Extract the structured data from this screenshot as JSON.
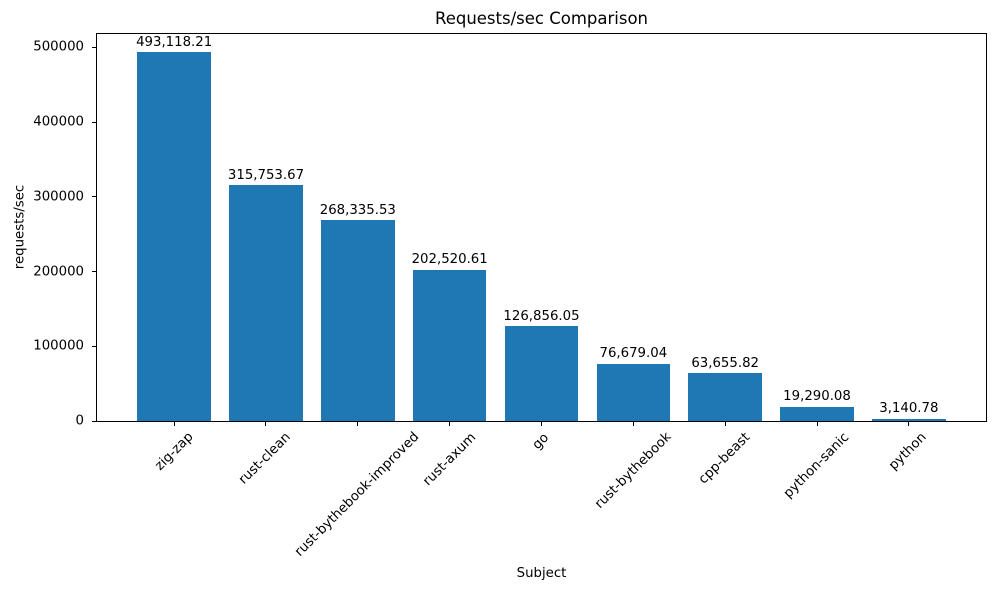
{
  "chart_data": {
    "type": "bar",
    "title": "Requests/sec Comparison",
    "xlabel": "Subject",
    "ylabel": "requests/sec",
    "categories": [
      "zig-zap",
      "rust-clean",
      "rust-bythebook-improved",
      "rust-axum",
      "go",
      "rust-bythebook",
      "cpp-beast",
      "python-sanic",
      "python"
    ],
    "values": [
      493118.21,
      315753.67,
      268335.53,
      202520.61,
      126856.05,
      76679.04,
      63655.82,
      19290.08,
      3140.78
    ],
    "value_labels": [
      "493,118.21",
      "315,753.67",
      "268,335.53",
      "202,520.61",
      "126,856.05",
      "76,679.04",
      "63,655.82",
      "19,290.08",
      "3,140.78"
    ],
    "yticks": [
      0,
      100000,
      200000,
      300000,
      400000,
      500000
    ],
    "ytick_labels": [
      "0",
      "100000",
      "200000",
      "300000",
      "400000",
      "500000"
    ],
    "ylim": [
      0,
      517774
    ],
    "bar_color": "#1f77b4",
    "axis_color": "#000000",
    "grid": false,
    "legend_position": "none",
    "bar_width_fraction": 0.8
  }
}
